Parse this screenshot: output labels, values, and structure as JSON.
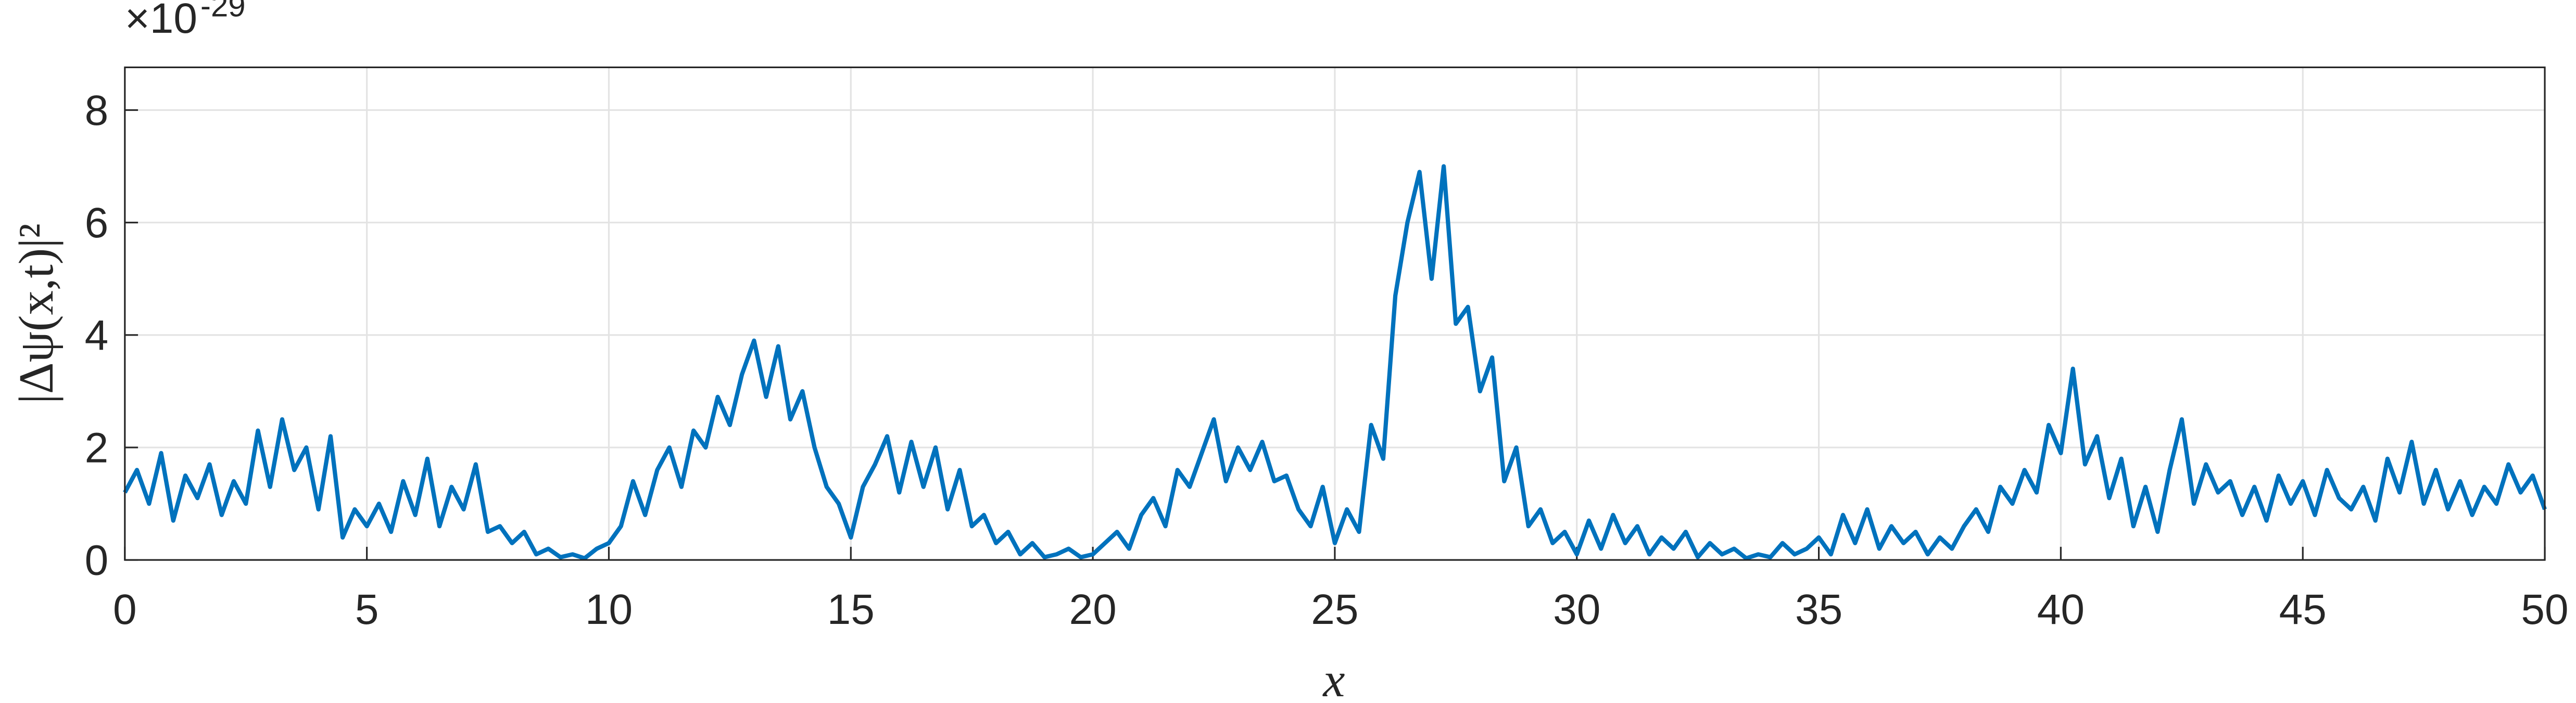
{
  "chart_data": {
    "type": "line",
    "xlabel": "x",
    "ylabel": "|Δψ(x,t)|²",
    "y_exponent_base": "×10",
    "y_exponent": "-29",
    "xlim": [
      0,
      50
    ],
    "ylim": [
      0,
      8.76
    ],
    "xticks": [
      0,
      5,
      10,
      15,
      20,
      25,
      30,
      35,
      40,
      45,
      50
    ],
    "yticks": [
      0,
      2,
      4,
      6,
      8
    ],
    "grid": true,
    "x": [
      0,
      0.25,
      0.5,
      0.75,
      1,
      1.25,
      1.5,
      1.75,
      2,
      2.25,
      2.5,
      2.75,
      3,
      3.25,
      3.5,
      3.75,
      4,
      4.25,
      4.5,
      4.75,
      5,
      5.25,
      5.5,
      5.75,
      6,
      6.25,
      6.5,
      6.75,
      7,
      7.25,
      7.5,
      7.75,
      8,
      8.25,
      8.5,
      8.75,
      9,
      9.25,
      9.5,
      9.75,
      10,
      10.25,
      10.5,
      10.75,
      11,
      11.25,
      11.5,
      11.75,
      12,
      12.25,
      12.5,
      12.75,
      13,
      13.25,
      13.5,
      13.75,
      14,
      14.25,
      14.5,
      14.75,
      15,
      15.25,
      15.5,
      15.75,
      16,
      16.25,
      16.5,
      16.75,
      17,
      17.25,
      17.5,
      17.75,
      18,
      18.25,
      18.5,
      18.75,
      19,
      19.25,
      19.5,
      19.75,
      20,
      20.25,
      20.5,
      20.75,
      21,
      21.25,
      21.5,
      21.75,
      22,
      22.25,
      22.5,
      22.75,
      23,
      23.25,
      23.5,
      23.75,
      24,
      24.25,
      24.5,
      24.75,
      25,
      25.25,
      25.5,
      25.75,
      26,
      26.25,
      26.5,
      26.75,
      27,
      27.25,
      27.5,
      27.75,
      28,
      28.25,
      28.5,
      28.75,
      29,
      29.25,
      29.5,
      29.75,
      30,
      30.25,
      30.5,
      30.75,
      31,
      31.25,
      31.5,
      31.75,
      32,
      32.25,
      32.5,
      32.75,
      33,
      33.25,
      33.5,
      33.75,
      34,
      34.25,
      34.5,
      34.75,
      35,
      35.25,
      35.5,
      35.75,
      36,
      36.25,
      36.5,
      36.75,
      37,
      37.25,
      37.5,
      37.75,
      38,
      38.25,
      38.5,
      38.75,
      39,
      39.25,
      39.5,
      39.75,
      40,
      40.25,
      40.5,
      40.75,
      41,
      41.25,
      41.5,
      41.75,
      42,
      42.25,
      42.5,
      42.75,
      43,
      43.25,
      43.5,
      43.75,
      44,
      44.25,
      44.5,
      44.75,
      45,
      45.25,
      45.5,
      45.75,
      46,
      46.25,
      46.5,
      46.75,
      47,
      47.25,
      47.5,
      47.75,
      48,
      48.25,
      48.5,
      48.75,
      49,
      49.25,
      49.5,
      49.75,
      50
    ],
    "series": [
      {
        "color": "#0072bd",
        "values": [
          1.2,
          1.6,
          1.0,
          1.9,
          0.7,
          1.5,
          1.1,
          1.7,
          0.8,
          1.4,
          1.0,
          2.3,
          1.3,
          2.5,
          1.6,
          2.0,
          0.9,
          2.2,
          0.4,
          0.9,
          0.6,
          1.0,
          0.5,
          1.4,
          0.8,
          1.8,
          0.6,
          1.3,
          0.9,
          1.7,
          0.5,
          0.6,
          0.3,
          0.5,
          0.1,
          0.2,
          0.05,
          0.1,
          0.03,
          0.2,
          0.3,
          0.6,
          1.4,
          0.8,
          1.6,
          2.0,
          1.3,
          2.3,
          2.0,
          2.9,
          2.4,
          3.3,
          3.9,
          2.9,
          3.8,
          2.5,
          3.0,
          2.0,
          1.3,
          1.0,
          0.4,
          1.3,
          1.7,
          2.2,
          1.2,
          2.1,
          1.3,
          2.0,
          0.9,
          1.6,
          0.6,
          0.8,
          0.3,
          0.5,
          0.1,
          0.3,
          0.05,
          0.1,
          0.2,
          0.05,
          0.1,
          0.3,
          0.5,
          0.2,
          0.8,
          1.1,
          0.6,
          1.6,
          1.3,
          1.9,
          2.5,
          1.4,
          2.0,
          1.6,
          2.1,
          1.4,
          1.5,
          0.9,
          0.6,
          1.3,
          0.3,
          0.9,
          0.5,
          2.4,
          1.8,
          4.7,
          6.0,
          6.9,
          5.0,
          7.0,
          4.2,
          4.5,
          3.0,
          3.6,
          1.4,
          2.0,
          0.6,
          0.9,
          0.3,
          0.5,
          0.1,
          0.7,
          0.2,
          0.8,
          0.3,
          0.6,
          0.1,
          0.4,
          0.2,
          0.5,
          0.05,
          0.3,
          0.1,
          0.2,
          0.03,
          0.1,
          0.05,
          0.3,
          0.1,
          0.2,
          0.4,
          0.1,
          0.8,
          0.3,
          0.9,
          0.2,
          0.6,
          0.3,
          0.5,
          0.1,
          0.4,
          0.2,
          0.6,
          0.9,
          0.5,
          1.3,
          1.0,
          1.6,
          1.2,
          2.4,
          1.9,
          3.4,
          1.7,
          2.2,
          1.1,
          1.8,
          0.6,
          1.3,
          0.5,
          1.6,
          2.5,
          1.0,
          1.7,
          1.2,
          1.4,
          0.8,
          1.3,
          0.7,
          1.5,
          1.0,
          1.4,
          0.8,
          1.6,
          1.1,
          0.9,
          1.3,
          0.7,
          1.8,
          1.2,
          2.1,
          1.0,
          1.6,
          0.9,
          1.4,
          0.8,
          1.3,
          1.0,
          1.7,
          1.2,
          1.5,
          0.9
        ]
      }
    ]
  }
}
